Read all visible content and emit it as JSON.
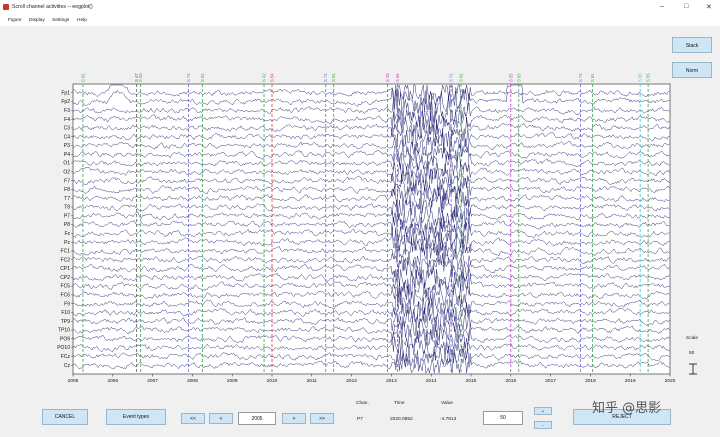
{
  "window": {
    "title": "Scroll channel activities -- eegplot()",
    "controls": [
      "–",
      "□",
      "✕"
    ]
  },
  "menu": [
    "Figure",
    "Display",
    "Settings",
    "Help"
  ],
  "side_buttons": {
    "stack": "Stack",
    "norm": "Norm"
  },
  "channels": [
    "Fp1",
    "Fp2",
    "F3",
    "F4",
    "C3",
    "C4",
    "P3",
    "P4",
    "O1",
    "O2",
    "F7",
    "F8",
    "T7",
    "T8",
    "P7",
    "P8",
    "Fz",
    "Pz",
    "FC1",
    "FC2",
    "CP1",
    "CP2",
    "FC5",
    "FC6",
    "F9",
    "F10",
    "TP9",
    "TP10",
    "PO9",
    "PO10",
    "FCz",
    "Cz"
  ],
  "time_ticks": [
    "2005",
    "2006",
    "2007",
    "2008",
    "2009",
    "2010",
    "2011",
    "2012",
    "2013",
    "2014",
    "2015",
    "2016",
    "2017",
    "2018",
    "2019",
    "2020"
  ],
  "events": [
    {
      "t": 2005.25,
      "label": "S 91",
      "color": "#3aa34a"
    },
    {
      "t": 2006.6,
      "label": "S 47",
      "color": "#555555"
    },
    {
      "t": 2006.7,
      "label": "S 53",
      "color": "#3aa34a"
    },
    {
      "t": 2007.9,
      "label": "S 71",
      "color": "#6a6adf"
    },
    {
      "t": 2008.25,
      "label": "S 91",
      "color": "#3aa34a"
    },
    {
      "t": 2009.8,
      "label": "S 42",
      "color": "#3aa34a"
    },
    {
      "t": 2010.0,
      "label": "S 54",
      "color": "#e03a3a"
    },
    {
      "t": 2011.35,
      "label": "S 71",
      "color": "#6a6adf"
    },
    {
      "t": 2011.55,
      "label": "S 91",
      "color": "#3aa34a"
    },
    {
      "t": 2012.9,
      "label": "S 43",
      "color": "#cc33cc"
    },
    {
      "t": 2013.15,
      "label": "S 56",
      "color": "#cc33cc"
    },
    {
      "t": 2014.5,
      "label": "S 71",
      "color": "#6a6adf"
    },
    {
      "t": 2014.75,
      "label": "S 91",
      "color": "#3aa34a"
    },
    {
      "t": 2016.0,
      "label": "S 55",
      "color": "#cc33cc"
    },
    {
      "t": 2016.2,
      "label": "S 63",
      "color": "#3aa34a"
    },
    {
      "t": 2017.75,
      "label": "S 71",
      "color": "#6a6adf"
    },
    {
      "t": 2018.05,
      "label": "S 91",
      "color": "#3aa34a"
    },
    {
      "t": 2019.25,
      "label": "S 38",
      "color": "#33cccc"
    },
    {
      "t": 2019.45,
      "label": "S 55",
      "color": "#3aa34a"
    }
  ],
  "trace_color": "#1a1a6e",
  "scale": {
    "label": "Scale",
    "value": "50"
  },
  "controls": {
    "cancel": "CANCEL",
    "event_types": "Event types",
    "nav_first": "<<",
    "nav_prev": "<",
    "position": "2005",
    "nav_next": ">",
    "nav_last": ">>",
    "chan_label": "Chan.",
    "time_label": "Time",
    "value_label": "Value",
    "chan_value": "P7",
    "time_value": "2020.0852",
    "value_value": "-4.7813",
    "scale_field": "50",
    "plus": "+",
    "minus": "-",
    "reject": "REJECT"
  },
  "watermark": "知乎 @思影"
}
